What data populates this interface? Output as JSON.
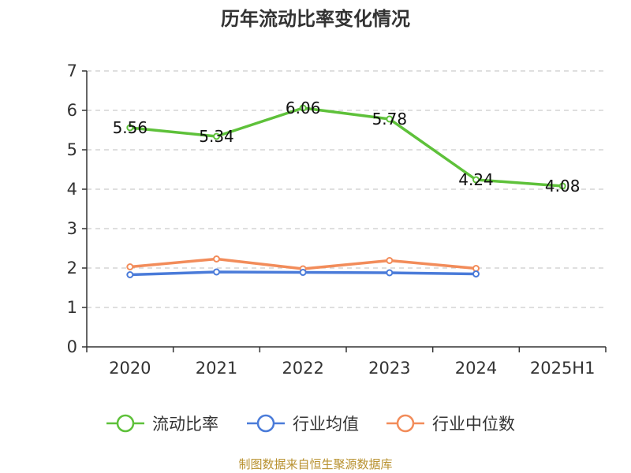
{
  "chart_data": {
    "type": "line",
    "title": "历年流动比率变化情况",
    "categories": [
      "2020",
      "2021",
      "2022",
      "2023",
      "2024",
      "2025H1"
    ],
    "ylim": [
      0,
      7
    ],
    "yticks": [
      0,
      1,
      2,
      3,
      4,
      5,
      6,
      7
    ],
    "grid": true,
    "legend_position": "bottom",
    "series": [
      {
        "name": "流动比率",
        "color": "#5ec13a",
        "values": [
          5.56,
          5.34,
          6.06,
          5.78,
          4.24,
          4.08
        ],
        "labels": [
          "5.56",
          "5.34",
          "6.06",
          "5.78",
          "4.24",
          "4.08"
        ]
      },
      {
        "name": "行业均值",
        "color": "#4a7bd9",
        "values": [
          1.83,
          1.9,
          1.89,
          1.88,
          1.85,
          null
        ]
      },
      {
        "name": "行业中位数",
        "color": "#f28c5a",
        "values": [
          2.03,
          2.23,
          1.98,
          2.19,
          1.99,
          null
        ]
      }
    ],
    "source": "制图数据来自恒生聚源数据库"
  }
}
